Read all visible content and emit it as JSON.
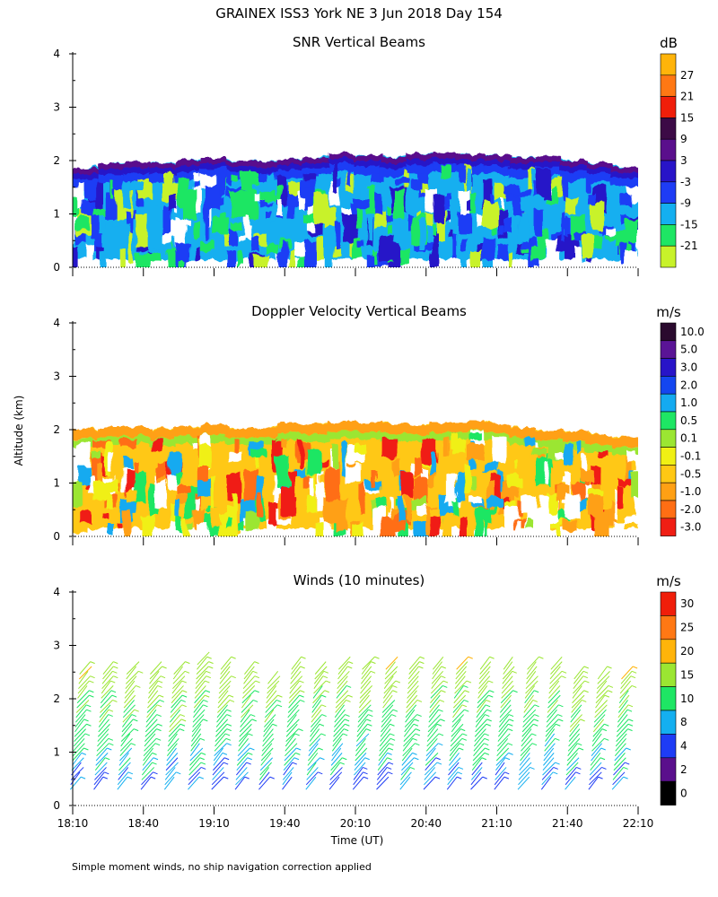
{
  "header": {
    "title": "GRAINEX ISS3 York NE   3 Jun 2018 Day 154"
  },
  "footer": {
    "note": "Simple moment winds, no ship navigation correction applied"
  },
  "axes": {
    "ylabel": "Altitude (km)",
    "xlabel": "Time (UT)",
    "x_ticks": [
      "18:10",
      "18:40",
      "19:10",
      "19:40",
      "20:10",
      "20:40",
      "21:10",
      "21:40",
      "22:10"
    ],
    "y_ticks": [
      "0",
      "1",
      "2",
      "3",
      "4"
    ]
  },
  "panels": {
    "snr": {
      "title": "SNR Vertical Beams",
      "unit": "dB",
      "levels": [
        "-21",
        "-15",
        "-9",
        "-3",
        "3",
        "9",
        "15",
        "21",
        "27"
      ],
      "colors": [
        "#c8f22a",
        "#1ee664",
        "#14aff0",
        "#1e3cf5",
        "#2814c8",
        "#5a0f8c",
        "#3c0a46",
        "#f01e0a",
        "#ff7814",
        "#ffb40a"
      ]
    },
    "doppler": {
      "title": "Doppler Velocity Vertical Beams",
      "unit": "m/s",
      "levels": [
        "10.0",
        "5.0",
        "3.0",
        "2.0",
        "1.0",
        "0.5",
        "0.1",
        "-0.1",
        "-0.5",
        "-1.0",
        "-2.0",
        "-3.0"
      ],
      "colors": [
        "#2a0a2e",
        "#5a1496",
        "#2814c8",
        "#1446f0",
        "#14aaf0",
        "#1ee664",
        "#9be632",
        "#f0f014",
        "#ffc814",
        "#ffa014",
        "#ff6e14",
        "#f01e14"
      ]
    },
    "winds": {
      "title": "Winds (10 minutes)",
      "unit": "m/s",
      "levels": [
        "30",
        "25",
        "20",
        "15",
        "10",
        "8",
        "4",
        "2",
        "0"
      ],
      "colors": [
        "#f01e0a",
        "#ff7814",
        "#ffb40a",
        "#9be632",
        "#1ee664",
        "#14aff0",
        "#1e3cf5",
        "#5a0f8c",
        "#000000"
      ]
    }
  },
  "chart_data": [
    {
      "type": "heatmap",
      "title": "SNR Vertical Beams",
      "xlabel": "",
      "ylabel": "Altitude (km)",
      "colorbar_label": "dB",
      "x_range": [
        "18:10",
        "22:10"
      ],
      "ylim": [
        0,
        4
      ],
      "color_levels": [
        -21,
        -15,
        -9,
        -3,
        3,
        9,
        15,
        21,
        27
      ],
      "echo_top_km": [
        1.85,
        1.95,
        1.98,
        1.95,
        2.0,
        2.05,
        2.0,
        1.98,
        2.02,
        2.05,
        2.15,
        2.1,
        2.05,
        2.12,
        2.15,
        2.12,
        2.1,
        2.05,
        2.08,
        2.0,
        1.95,
        1.88
      ]
    },
    {
      "type": "heatmap",
      "title": "Doppler Velocity Vertical Beams",
      "xlabel": "",
      "ylabel": "Altitude (km)",
      "colorbar_label": "m/s",
      "x_range": [
        "18:10",
        "22:10"
      ],
      "ylim": [
        0,
        4
      ],
      "color_levels": [
        10.0,
        5.0,
        3.0,
        2.0,
        1.0,
        0.5,
        0.1,
        -0.1,
        -0.5,
        -1.0,
        -2.0,
        -3.0
      ],
      "echo_top_km": [
        2.0,
        2.05,
        2.05,
        2.0,
        2.05,
        2.1,
        2.05,
        2.05,
        2.1,
        2.1,
        2.15,
        2.15,
        2.1,
        2.1,
        2.15,
        2.15,
        2.1,
        2.05,
        2.0,
        1.95,
        1.9,
        1.85
      ]
    },
    {
      "type": "scatter",
      "title": "Winds (10 minutes)",
      "xlabel": "Time (UT)",
      "ylabel": "Altitude (km)",
      "colorbar_label": "m/s",
      "xlim": [
        "18:10",
        "22:10"
      ],
      "ylim": [
        0,
        4
      ],
      "color_levels": [
        30,
        25,
        20,
        15,
        10,
        8,
        4,
        2,
        0
      ],
      "profile_times": [
        "18:13",
        "18:23",
        "18:33",
        "18:43",
        "18:53",
        "19:03",
        "19:13",
        "19:23",
        "19:33",
        "19:43",
        "19:53",
        "20:03",
        "20:13",
        "20:23",
        "20:33",
        "20:43",
        "20:53",
        "21:03",
        "21:13",
        "21:23",
        "21:33",
        "21:43",
        "21:53",
        "22:03"
      ],
      "profile_top_km": [
        2.5,
        2.5,
        2.5,
        2.5,
        2.5,
        2.7,
        2.6,
        2.5,
        2.35,
        2.6,
        2.5,
        2.6,
        2.6,
        2.6,
        2.6,
        2.6,
        2.6,
        2.55,
        2.6,
        2.55,
        2.55,
        2.45,
        2.4,
        2.4
      ]
    }
  ]
}
